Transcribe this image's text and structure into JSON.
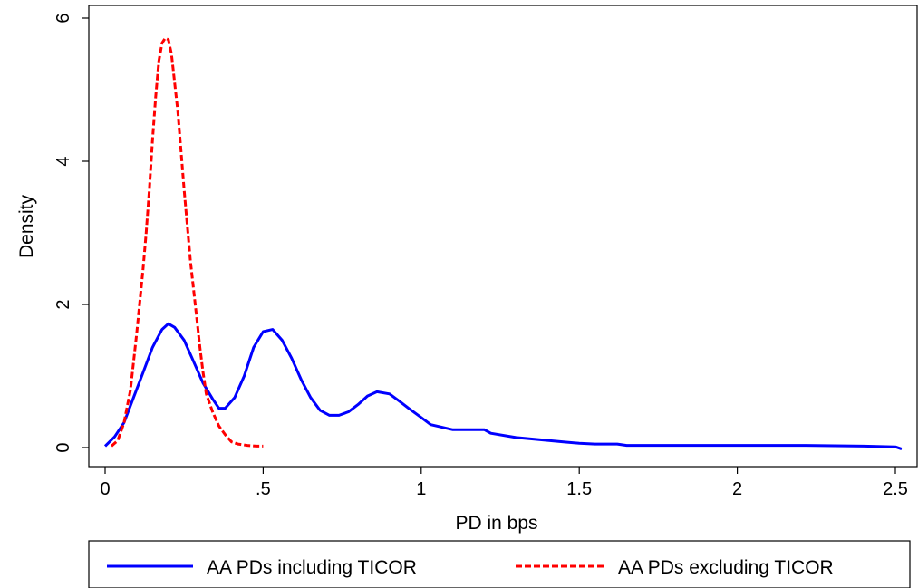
{
  "chart_data": {
    "type": "line",
    "title": "",
    "xlabel": "PD in bps",
    "ylabel": "Density",
    "xlim": [
      0,
      2.55
    ],
    "ylim": [
      0,
      6.05
    ],
    "x_ticks": [
      {
        "value": 0,
        "label": "0"
      },
      {
        "value": 0.5,
        "label": ".5"
      },
      {
        "value": 1,
        "label": "1"
      },
      {
        "value": 1.5,
        "label": "1.5"
      },
      {
        "value": 2,
        "label": "2"
      },
      {
        "value": 2.5,
        "label": "2.5"
      }
    ],
    "y_ticks": [
      {
        "value": 0,
        "label": "0"
      },
      {
        "value": 2,
        "label": "2"
      },
      {
        "value": 4,
        "label": "4"
      },
      {
        "value": 6,
        "label": "6"
      }
    ],
    "grid": false,
    "legend_position": "bottom",
    "series": [
      {
        "name": "AA PDs including TICOR",
        "color": "#0000ff",
        "dash": "solid",
        "x": [
          0,
          0.03,
          0.06,
          0.09,
          0.12,
          0.15,
          0.18,
          0.2,
          0.22,
          0.25,
          0.28,
          0.31,
          0.34,
          0.36,
          0.38,
          0.41,
          0.44,
          0.47,
          0.5,
          0.53,
          0.56,
          0.59,
          0.62,
          0.65,
          0.68,
          0.71,
          0.74,
          0.77,
          0.8,
          0.83,
          0.86,
          0.9,
          0.93,
          0.96,
          1.0,
          1.03,
          1.1,
          1.2,
          1.22,
          1.3,
          1.35,
          1.4,
          1.45,
          1.5,
          1.55,
          1.62,
          1.65,
          1.8,
          2.0,
          2.2,
          2.4,
          2.5,
          2.52
        ],
        "y": [
          0.02,
          0.15,
          0.35,
          0.7,
          1.05,
          1.4,
          1.65,
          1.73,
          1.68,
          1.5,
          1.2,
          0.9,
          0.68,
          0.55,
          0.55,
          0.7,
          1.0,
          1.4,
          1.62,
          1.65,
          1.5,
          1.25,
          0.95,
          0.7,
          0.52,
          0.45,
          0.45,
          0.5,
          0.6,
          0.72,
          0.78,
          0.75,
          0.65,
          0.55,
          0.42,
          0.32,
          0.25,
          0.25,
          0.2,
          0.14,
          0.12,
          0.1,
          0.08,
          0.06,
          0.05,
          0.05,
          0.03,
          0.03,
          0.03,
          0.03,
          0.02,
          0.01,
          -0.02
        ]
      },
      {
        "name": "AA PDs excluding TICOR",
        "color": "#ff0000",
        "dash": "dashed",
        "x": [
          0.02,
          0.04,
          0.06,
          0.08,
          0.09,
          0.1,
          0.11,
          0.12,
          0.13,
          0.14,
          0.15,
          0.16,
          0.17,
          0.18,
          0.19,
          0.2,
          0.21,
          0.22,
          0.23,
          0.24,
          0.25,
          0.26,
          0.27,
          0.28,
          0.29,
          0.3,
          0.31,
          0.32,
          0.34,
          0.36,
          0.38,
          0.4,
          0.42,
          0.45,
          0.48,
          0.5
        ],
        "y": [
          0.02,
          0.1,
          0.35,
          0.8,
          1.2,
          1.6,
          2.05,
          2.5,
          3.0,
          3.6,
          4.3,
          4.9,
          5.4,
          5.65,
          5.72,
          5.7,
          5.5,
          5.1,
          4.7,
          4.15,
          3.6,
          3.1,
          2.6,
          2.2,
          1.8,
          1.4,
          1.05,
          0.75,
          0.5,
          0.3,
          0.18,
          0.08,
          0.05,
          0.03,
          0.02,
          0.02
        ]
      }
    ]
  }
}
